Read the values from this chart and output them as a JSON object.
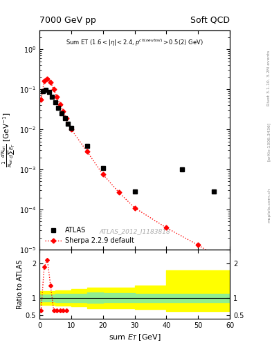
{
  "title_left": "7000 GeV pp",
  "title_right": "Soft QCD",
  "watermark": "ATLAS_2012_I1183818",
  "right_label": "Rivet 3.1.10, 3.2M events",
  "arxiv_label": "[arXiv:1306.3436]",
  "mcplots_label": "mcplots.cern.ch",
  "xlabel": "sum E_T [GeV]",
  "xlim": [
    0,
    60
  ],
  "ylim_main": [
    1e-05,
    3.0
  ],
  "ylim_ratio": [
    0.4,
    2.4
  ],
  "atlas_x": [
    1.0,
    2.0,
    3.0,
    4.0,
    5.0,
    6.0,
    7.0,
    8.0,
    9.0,
    10.0,
    15.0,
    20.0,
    30.0,
    45.0,
    55.0
  ],
  "atlas_y": [
    0.09,
    0.095,
    0.085,
    0.065,
    0.048,
    0.035,
    0.025,
    0.019,
    0.014,
    0.011,
    0.0038,
    0.0011,
    0.00028,
    0.001,
    0.00028
  ],
  "sherpa_x": [
    0.5,
    1.5,
    2.5,
    3.5,
    4.5,
    5.5,
    6.5,
    7.5,
    8.5,
    10.0,
    15.0,
    20.0,
    25.0,
    30.0,
    40.0,
    50.0,
    57.5
  ],
  "sherpa_y": [
    0.055,
    0.16,
    0.185,
    0.15,
    0.1,
    0.065,
    0.042,
    0.028,
    0.019,
    0.01,
    0.0028,
    0.00075,
    0.00027,
    0.00011,
    3.5e-05,
    1.3e-05,
    5.5e-06
  ],
  "ratio_x": [
    0.5,
    1.5,
    2.5,
    3.5,
    4.5,
    5.5,
    6.5,
    7.5,
    8.5
  ],
  "ratio_y": [
    0.63,
    1.9,
    2.1,
    1.35,
    0.63,
    0.63,
    0.63,
    0.63,
    0.63
  ],
  "band_edges": [
    0,
    2,
    5,
    10,
    15,
    20,
    30,
    40,
    50,
    60
  ],
  "band_yellow_lo": [
    0.8,
    0.8,
    0.78,
    0.75,
    0.7,
    0.7,
    0.68,
    0.62,
    0.62
  ],
  "band_yellow_hi": [
    1.2,
    1.2,
    1.22,
    1.25,
    1.3,
    1.3,
    1.35,
    1.8,
    1.8
  ],
  "band_green_lo": [
    0.9,
    0.9,
    0.88,
    0.88,
    0.85,
    0.87,
    0.88,
    0.88,
    0.88
  ],
  "band_green_hi": [
    1.1,
    1.1,
    1.12,
    1.12,
    1.15,
    1.13,
    1.12,
    1.12,
    1.12
  ]
}
